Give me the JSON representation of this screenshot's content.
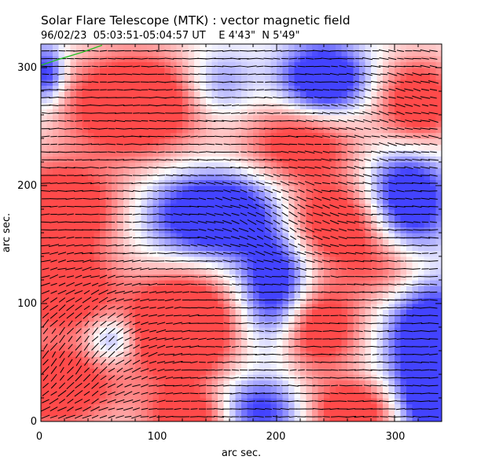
{
  "chart_data": {
    "type": "heatmap",
    "title": "Solar Flare Telescope (MTK) : vector magnetic field",
    "subtitle": "96/02/23  05:03:51-05:04:57 UT    E 4'43\"  N 5'49\"",
    "xlabel": "arc sec.",
    "ylabel": "arc sec.",
    "xlim": [
      0,
      340
    ],
    "ylim": [
      0,
      320
    ],
    "x_ticks": [
      0,
      100,
      200,
      300
    ],
    "y_ticks": [
      0,
      100,
      200,
      300
    ],
    "colors": {
      "positive": "#ff4a4a",
      "negative": "#4343ff",
      "zero": "#ffffff",
      "vector": "#000000",
      "limb": "#20c020"
    },
    "field_description": "Longitudinal field: red = positive polarity, blue = negative polarity; black dashes = transverse field vectors",
    "blobs": [
      {
        "cx": 15,
        "cy": 180,
        "sx": 55,
        "sy": 40,
        "amp": 1.0
      },
      {
        "cx": 20,
        "cy": 110,
        "sx": 45,
        "sy": 35,
        "amp": 0.9
      },
      {
        "cx": 10,
        "cy": 30,
        "sx": 55,
        "sy": 35,
        "amp": 1.0
      },
      {
        "cx": 80,
        "cy": 270,
        "sx": 60,
        "sy": 45,
        "amp": 1.1
      },
      {
        "cx": 240,
        "cy": 170,
        "sx": 70,
        "sy": 35,
        "amp": 1.0
      },
      {
        "cx": 220,
        "cy": 235,
        "sx": 50,
        "sy": 35,
        "amp": 0.8
      },
      {
        "cx": 120,
        "cy": 80,
        "sx": 45,
        "sy": 45,
        "amp": 1.3
      },
      {
        "cx": 230,
        "cy": 80,
        "sx": 40,
        "sy": 40,
        "amp": 1.0
      },
      {
        "cx": 320,
        "cy": 270,
        "sx": 35,
        "sy": 40,
        "amp": 0.9
      },
      {
        "cx": 300,
        "cy": 130,
        "sx": 45,
        "sy": 30,
        "amp": 0.6
      },
      {
        "cx": 130,
        "cy": 5,
        "sx": 40,
        "sy": 25,
        "amp": 0.9
      },
      {
        "cx": 265,
        "cy": 10,
        "sx": 40,
        "sy": 25,
        "amp": 0.9
      },
      {
        "cx": 155,
        "cy": 175,
        "sx": 60,
        "sy": 35,
        "amp": -1.3
      },
      {
        "cx": 240,
        "cy": 290,
        "sx": 35,
        "sy": 30,
        "amp": -1.1
      },
      {
        "cx": 310,
        "cy": 185,
        "sx": 35,
        "sy": 45,
        "amp": -1.2
      },
      {
        "cx": 200,
        "cy": 110,
        "sx": 30,
        "sy": 55,
        "amp": -1.1
      },
      {
        "cx": 330,
        "cy": 70,
        "sx": 35,
        "sy": 55,
        "amp": -1.1
      },
      {
        "cx": 180,
        "cy": 10,
        "sx": 40,
        "sy": 25,
        "amp": -0.8
      },
      {
        "cx": 60,
        "cy": 70,
        "sx": 20,
        "sy": 20,
        "amp": -0.6
      },
      {
        "cx": 5,
        "cy": 295,
        "sx": 15,
        "sy": 25,
        "amp": -0.8
      },
      {
        "cx": 150,
        "cy": 285,
        "sx": 30,
        "sy": 30,
        "amp": -0.5
      },
      {
        "cx": 330,
        "cy": 15,
        "sx": 30,
        "sy": 25,
        "amp": -0.7
      }
    ],
    "vector_angle_blobs": [
      {
        "cx": 20,
        "cy": 60,
        "sx": 70,
        "sy": 60,
        "deg": 55
      },
      {
        "cx": 200,
        "cy": 170,
        "sx": 60,
        "sy": 40,
        "deg": -30
      },
      {
        "cx": 300,
        "cy": 260,
        "sx": 60,
        "sy": 60,
        "deg": -15
      }
    ]
  }
}
